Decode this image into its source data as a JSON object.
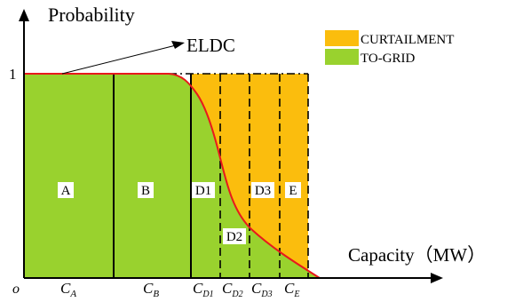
{
  "axes": {
    "y_title": "Probability",
    "x_title": "Capacity（MW）",
    "origin_label": "o",
    "y_tick_label": "1"
  },
  "x_ticks": {
    "ca": {
      "base": "C",
      "sub": "A"
    },
    "cb": {
      "base": "C",
      "sub": "B"
    },
    "cd1": {
      "base": "C",
      "sub": "D1"
    },
    "cd2": {
      "base": "C",
      "sub": "D2"
    },
    "cd3": {
      "base": "C",
      "sub": "D3"
    },
    "ce": {
      "base": "C",
      "sub": "E"
    }
  },
  "curve_label": "ELDC",
  "legend": {
    "curtailment": "CURTAILMENT",
    "to_grid": "TO-GRID"
  },
  "regions": {
    "a": "A",
    "b": "B",
    "d1": "D1",
    "d2": "D2",
    "d3": "D3",
    "e": "E"
  },
  "colors": {
    "to_grid": "#99d22e",
    "curtailment": "#fbbd0d",
    "curve": "#e8191c",
    "axis": "#000000"
  }
}
